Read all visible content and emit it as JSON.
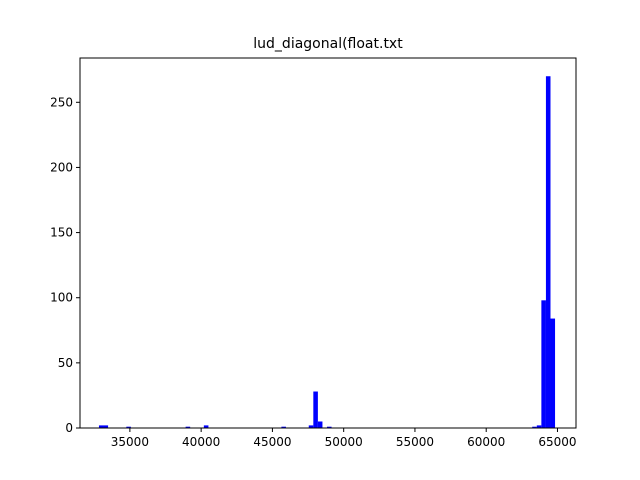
{
  "chart_data": {
    "type": "bar",
    "title": "lud_diagonal(float.txt",
    "xlabel": "",
    "ylabel": "",
    "xlim": [
      31500,
      66300
    ],
    "ylim": [
      0,
      284
    ],
    "x_ticks": [
      35000,
      40000,
      45000,
      50000,
      55000,
      60000,
      65000
    ],
    "x_tick_labels": [
      "35000",
      "40000",
      "45000",
      "50000",
      "55000",
      "60000",
      "65000"
    ],
    "y_ticks": [
      0,
      50,
      100,
      150,
      200,
      250
    ],
    "y_tick_labels": [
      "0",
      "50",
      "100",
      "150",
      "200",
      "250"
    ],
    "bin_width": 320,
    "bins": [
      {
        "x": 32990,
        "value": 2
      },
      {
        "x": 33310,
        "value": 2
      },
      {
        "x": 34910,
        "value": 1
      },
      {
        "x": 39070,
        "value": 1
      },
      {
        "x": 40350,
        "value": 2
      },
      {
        "x": 45790,
        "value": 1
      },
      {
        "x": 47710,
        "value": 2
      },
      {
        "x": 48030,
        "value": 28
      },
      {
        "x": 48350,
        "value": 5
      },
      {
        "x": 48990,
        "value": 1
      },
      {
        "x": 63390,
        "value": 1
      },
      {
        "x": 63710,
        "value": 2
      },
      {
        "x": 64030,
        "value": 98
      },
      {
        "x": 64350,
        "value": 270
      },
      {
        "x": 64670,
        "value": 84
      }
    ],
    "grid": false,
    "legend": "none",
    "bar_color": "#0000ff"
  }
}
